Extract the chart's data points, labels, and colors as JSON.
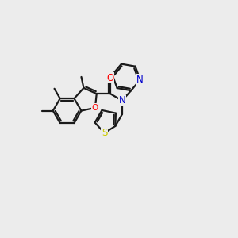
{
  "background_color": "#ececec",
  "bond_color": "#1a1a1a",
  "oxygen_color": "#ff0000",
  "nitrogen_color": "#0000cc",
  "sulfur_color": "#cccc00",
  "line_width": 1.6,
  "figsize": [
    3.0,
    3.0
  ],
  "dpi": 100,
  "xlim": [
    0.0,
    10.0
  ],
  "ylim": [
    1.0,
    9.5
  ]
}
